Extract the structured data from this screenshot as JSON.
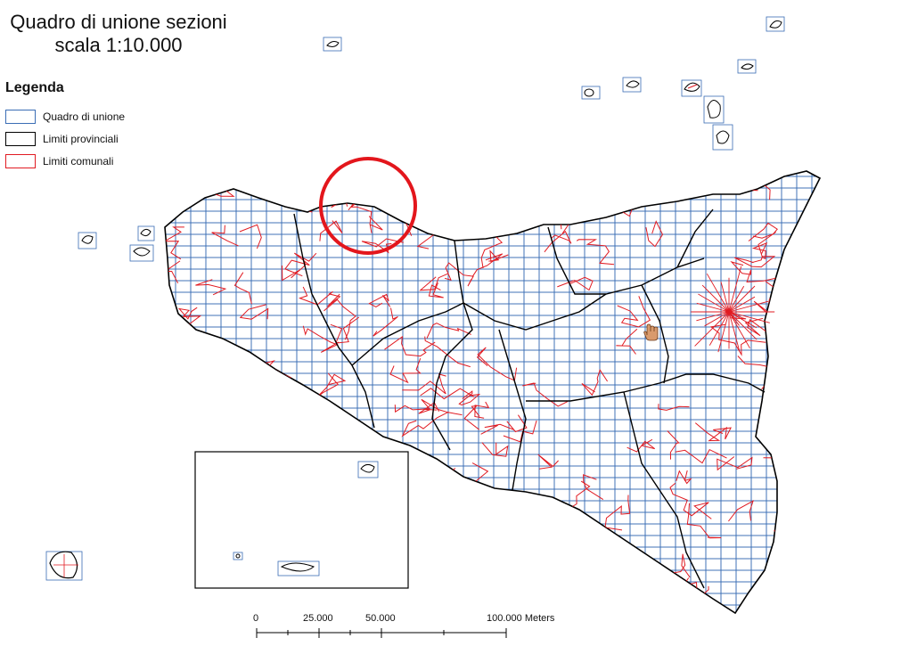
{
  "title": {
    "line1": "Quadro di unione sezioni",
    "line2": "scala 1:10.000"
  },
  "legend": {
    "heading": "Legenda",
    "items": [
      {
        "label": "Quadro di unione",
        "color": "#3a6db5"
      },
      {
        "label": "Limiti provinciali",
        "color": "#000000"
      },
      {
        "label": "Limiti comunali",
        "color": "#e11b22"
      }
    ]
  },
  "scale": {
    "labels": [
      "0",
      "25.000",
      "50.000",
      "100.000 Meters"
    ]
  },
  "colors": {
    "grid": "#3a6db5",
    "province": "#000000",
    "commune": "#e11b22",
    "highlight": "#e3161c"
  },
  "icons": {
    "cursor": "hand-cursor-icon"
  }
}
